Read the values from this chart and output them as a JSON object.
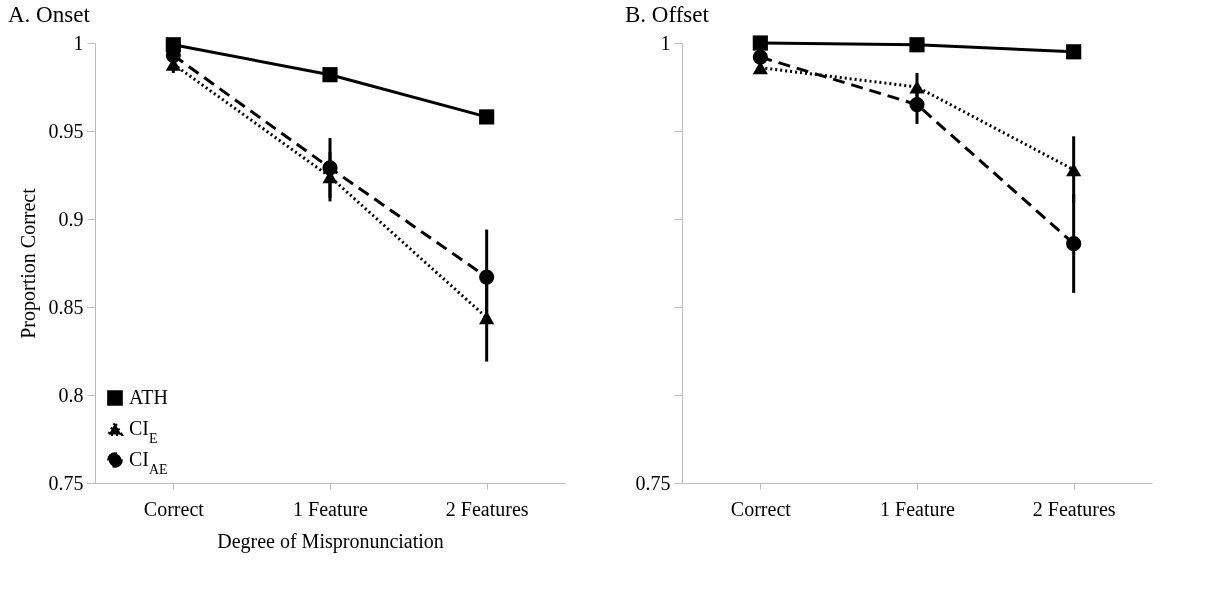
{
  "chart_data": [
    {
      "type": "line",
      "title": "A. Onset",
      "xlabel": "Degree of Mispronunciation",
      "ylabel": "Proportion Correct",
      "categories": [
        "Correct",
        "1 Feature",
        "2 Features"
      ],
      "series": [
        {
          "name": "ATH",
          "color": "#000000",
          "marker": "square",
          "line_style": "solid",
          "values": [
            0.999,
            0.982,
            0.958
          ],
          "errors": [
            0.002,
            0.002,
            0.002
          ]
        },
        {
          "name": "CI$_{E}$",
          "color": "#000000",
          "marker": "triangle",
          "line_style": "dotted",
          "values": [
            0.988,
            0.924,
            0.844
          ],
          "errors": [
            0.005,
            0.014,
            0.025
          ]
        },
        {
          "name": "CI$_{AE}$",
          "color": "#000000",
          "marker": "circle",
          "line_style": "dashed",
          "values": [
            0.993,
            0.929,
            0.867
          ],
          "errors": [
            0.004,
            0.017,
            0.027
          ]
        }
      ],
      "ylim": [
        0.75,
        1
      ],
      "yticks": [
        0.75,
        0.8,
        0.85,
        0.9,
        0.95,
        1
      ],
      "grid": false,
      "legend": "bottom left"
    },
    {
      "type": "line",
      "title": "B. Offset",
      "categories": [
        "Correct",
        "1 Feature",
        "2 Features"
      ],
      "series": [
        {
          "color": "#000000",
          "marker": "square",
          "line_style": "solid",
          "values": [
            1.0,
            0.999,
            0.995
          ],
          "errors": [
            0.001,
            0.001,
            0.001
          ]
        },
        {
          "color": "#000000",
          "marker": "triangle",
          "line_style": "dotted",
          "values": [
            0.986,
            0.975,
            0.928
          ],
          "errors": [
            0.003,
            0.008,
            0.019
          ]
        },
        {
          "color": "#000000",
          "marker": "circle",
          "line_style": "dashed",
          "values": [
            0.992,
            0.965,
            0.886
          ],
          "errors": [
            0.003,
            0.011,
            0.028
          ]
        }
      ],
      "ylim": [
        0.75,
        1
      ],
      "yticks": [
        0.75,
        {
          "value": 0.8,
          "label": null
        },
        {
          "value": 0.85,
          "label": null
        },
        {
          "value": 0.9,
          "label": null
        },
        {
          "value": 0.95,
          "label": null
        },
        1
      ],
      "grid": false
    }
  ]
}
